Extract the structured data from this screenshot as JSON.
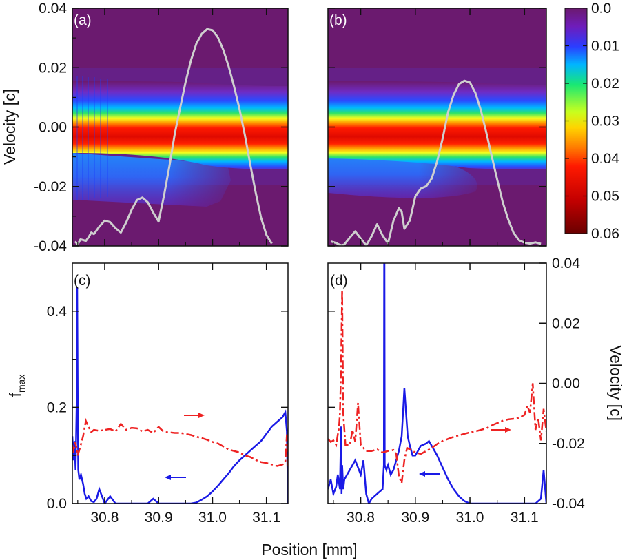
{
  "chart_data": [
    {
      "panel": "(a)",
      "type": "heatmap",
      "ylabel": "Velocity [c]",
      "ylim": [
        -0.04,
        0.04
      ],
      "xlim": [
        30.74,
        31.14
      ],
      "yticks": [
        "0.04",
        "0.02",
        "0.00",
        "-0.02",
        "-0.04"
      ],
      "overlay_curve": {
        "name": "density profile",
        "color": "#cfcfcf",
        "x": [
          30.745,
          30.75,
          30.755,
          30.76,
          30.765,
          30.77,
          30.775,
          30.78,
          30.79,
          30.8,
          30.81,
          30.82,
          30.83,
          30.84,
          30.85,
          30.86,
          30.87,
          30.88,
          30.89,
          30.9,
          30.91,
          30.92,
          30.93,
          30.94,
          30.95,
          30.96,
          30.97,
          30.98,
          30.99,
          31.0,
          31.01,
          31.02,
          31.03,
          31.04,
          31.05,
          31.06,
          31.07,
          31.08,
          31.09,
          31.1,
          31.11
        ],
        "y": [
          -0.0385,
          -0.0395,
          -0.0378,
          -0.038,
          -0.0383,
          -0.0371,
          -0.0355,
          -0.036,
          -0.0335,
          -0.0315,
          -0.032,
          -0.034,
          -0.0355,
          -0.032,
          -0.0278,
          -0.0245,
          -0.0237,
          -0.0253,
          -0.0288,
          -0.0318,
          -0.0231,
          -0.0131,
          -0.0022,
          0.0065,
          0.0151,
          0.0225,
          0.0281,
          0.0314,
          0.033,
          0.0326,
          0.0302,
          0.026,
          0.0204,
          0.0137,
          0.0061,
          -0.0027,
          -0.0125,
          -0.0219,
          -0.0305,
          -0.0363,
          -0.0392
        ]
      },
      "fill_bands": "central red band at 0.00 bounded by yellow/green/cyan edges near +/-0.012; blue region between -0.013 and -0.023 for positions below 31.0"
    },
    {
      "panel": "(b)",
      "type": "heatmap",
      "ylim": [
        -0.04,
        0.04
      ],
      "xlim": [
        30.74,
        31.14
      ],
      "overlay_curve": {
        "name": "density profile",
        "color": "#cfcfcf",
        "x": [
          30.745,
          30.75,
          30.755,
          30.76,
          30.765,
          30.77,
          30.78,
          30.79,
          30.8,
          30.81,
          30.82,
          30.83,
          30.84,
          30.85,
          30.86,
          30.87,
          30.875,
          30.88,
          30.89,
          30.9,
          30.91,
          30.92,
          30.93,
          30.94,
          30.95,
          30.96,
          30.97,
          30.98,
          30.99,
          31.0,
          31.01,
          31.02,
          31.03,
          31.04,
          31.05,
          31.06,
          31.07,
          31.08,
          31.09,
          31.1,
          31.11,
          31.12,
          31.13
        ],
        "y": [
          -0.0385,
          -0.0387,
          -0.039,
          -0.0395,
          -0.0398,
          -0.0395,
          -0.0372,
          -0.0351,
          -0.0375,
          -0.0398,
          -0.0367,
          -0.0327,
          -0.0365,
          -0.0391,
          -0.0315,
          -0.0273,
          -0.0285,
          -0.0342,
          -0.0314,
          -0.0233,
          -0.0207,
          -0.0199,
          -0.0173,
          -0.0115,
          -0.0039,
          0.0051,
          0.0108,
          0.0145,
          0.0156,
          0.015,
          0.0115,
          0.0057,
          -0.0018,
          -0.0098,
          -0.0177,
          -0.0252,
          -0.031,
          -0.0356,
          -0.0381,
          -0.0389,
          -0.0392,
          -0.0388,
          -0.0393
        ]
      },
      "fill_bands": "central red band at 0.00 bounded by yellow/green/cyan edges near +/-0.012; blue arch region between -0.012 and -0.024 for positions below 31.0"
    },
    {
      "panel": "(c)",
      "type": "line",
      "ylabel": "f",
      "ylabel_sub": "max",
      "ylim": [
        0.0,
        0.5
      ],
      "xlim": [
        30.74,
        31.14
      ],
      "yticks": [
        "0.4",
        "0.2",
        "0.0"
      ],
      "xticks": [
        30.8,
        30.9,
        31.0,
        31.1
      ],
      "xtick_labels": [
        "30.8",
        "30.9",
        "31.0",
        "31.1"
      ],
      "series": [
        {
          "name": "fmax",
          "axis": "left",
          "color": "#1a1ae6",
          "style": "solid",
          "x": [
            30.74,
            30.742,
            30.744,
            30.746,
            30.748,
            30.749,
            30.75,
            30.751,
            30.753,
            30.756,
            30.76,
            30.763,
            30.766,
            30.77,
            30.775,
            30.78,
            30.785,
            30.79,
            30.8,
            30.81,
            30.82,
            30.83,
            30.84,
            30.85,
            30.86,
            30.87,
            30.88,
            30.885,
            30.89,
            30.9,
            30.91,
            30.92,
            30.93,
            30.94,
            30.95,
            30.96,
            30.97,
            30.98,
            30.99,
            31.0,
            31.01,
            31.02,
            31.03,
            31.04,
            31.05,
            31.06,
            31.07,
            31.08,
            31.09,
            31.1,
            31.11,
            31.12,
            31.13,
            31.135,
            31.138,
            31.14
          ],
          "y": [
            0.14,
            0.09,
            0.13,
            0.07,
            0.21,
            0.45,
            0.21,
            0.07,
            0.05,
            0.06,
            0.04,
            0.02,
            0.01,
            0.015,
            0.005,
            0.003,
            0.01,
            0.03,
            0.0,
            0.015,
            0.0,
            0.0,
            0.0,
            0.0,
            0.0,
            0.0,
            0.0,
            0.005,
            0.01,
            0.0,
            0.0,
            0.0,
            0.0,
            0.0,
            0.0,
            0.0,
            0.002,
            0.008,
            0.015,
            0.025,
            0.037,
            0.05,
            0.063,
            0.078,
            0.09,
            0.1,
            0.11,
            0.12,
            0.13,
            0.145,
            0.16,
            0.17,
            0.18,
            0.19,
            0.15,
            0.0
          ]
        },
        {
          "name": "velocity",
          "axis": "right",
          "color": "#ee2222",
          "style": "dash-dot",
          "x": [
            30.74,
            30.742,
            30.745,
            30.748,
            30.75,
            30.755,
            30.76,
            30.765,
            30.77,
            30.775,
            30.78,
            30.79,
            30.8,
            30.81,
            30.82,
            30.83,
            30.84,
            30.85,
            30.86,
            30.87,
            30.88,
            30.89,
            30.9,
            30.91,
            30.92,
            30.93,
            30.94,
            30.95,
            30.96,
            30.97,
            30.98,
            30.99,
            31.0,
            31.01,
            31.02,
            31.03,
            31.04,
            31.05,
            31.06,
            31.07,
            31.08,
            31.09,
            31.1,
            31.11,
            31.12,
            31.13,
            31.135,
            31.138,
            31.14
          ],
          "y": [
            -0.0205,
            -0.023,
            -0.0195,
            -0.0215,
            -0.024,
            -0.021,
            -0.0175,
            -0.0125,
            -0.0145,
            -0.0162,
            -0.0155,
            -0.0158,
            -0.0155,
            -0.0152,
            -0.016,
            -0.0135,
            -0.0155,
            -0.0148,
            -0.015,
            -0.016,
            -0.0155,
            -0.0165,
            -0.0145,
            -0.0162,
            -0.0163,
            -0.0165,
            -0.0165,
            -0.0168,
            -0.0172,
            -0.0178,
            -0.0182,
            -0.0188,
            -0.0195,
            -0.02,
            -0.021,
            -0.022,
            -0.0225,
            -0.023,
            -0.024,
            -0.0245,
            -0.0255,
            -0.0262,
            -0.0265,
            -0.027,
            -0.0275,
            -0.027,
            -0.026,
            -0.017,
            -0.0275
          ]
        }
      ]
    },
    {
      "panel": "(d)",
      "type": "line",
      "ylim": [
        0.0,
        0.5
      ],
      "xlim": [
        30.74,
        31.14
      ],
      "right_ylabel": "Velocity [c]",
      "right_ylim": [
        -0.04,
        0.04
      ],
      "right_yticks": [
        "0.04",
        "0.02",
        "0.00",
        "-0.02",
        "-0.04"
      ],
      "xticks": [
        30.8,
        30.9,
        31.0,
        31.1
      ],
      "xtick_labels": [
        "30.8",
        "30.9",
        "31.0",
        "31.1"
      ],
      "xlabel": "Position [mm]",
      "series": [
        {
          "name": "fmax",
          "axis": "left",
          "color": "#1a1ae6",
          "style": "solid",
          "x": [
            30.74,
            30.745,
            30.75,
            30.755,
            30.758,
            30.762,
            30.764,
            30.765,
            30.766,
            30.768,
            30.77,
            30.78,
            30.79,
            30.8,
            30.805,
            30.81,
            30.815,
            30.82,
            30.83,
            30.84,
            30.8425,
            30.843,
            30.8435,
            30.844,
            30.847,
            30.85,
            30.855,
            30.86,
            30.865,
            30.87,
            30.875,
            30.878,
            30.88,
            30.883,
            30.886,
            30.89,
            30.895,
            30.9,
            30.905,
            30.91,
            30.92,
            30.925,
            30.93,
            30.94,
            30.95,
            30.96,
            30.97,
            30.98,
            30.99,
            31.0,
            31.02,
            31.05,
            31.08,
            31.1,
            31.12,
            31.13,
            31.135,
            31.14
          ],
          "y": [
            0.03,
            0.05,
            0.02,
            0.035,
            0.06,
            0.03,
            0.16,
            0.02,
            0.08,
            0.03,
            0.05,
            0.07,
            0.09,
            0.06,
            0.09,
            0.02,
            0.0,
            0.01,
            0.02,
            0.03,
            0.08,
            0.5,
            0.5,
            0.08,
            0.07,
            0.08,
            0.06,
            0.07,
            0.09,
            0.11,
            0.14,
            0.2,
            0.24,
            0.19,
            0.14,
            0.12,
            0.1,
            0.1,
            0.11,
            0.12,
            0.125,
            0.13,
            0.12,
            0.1,
            0.075,
            0.05,
            0.03,
            0.015,
            0.005,
            0.0,
            0.0,
            0.0,
            0.0,
            0.0,
            0.0,
            0.01,
            0.07,
            0.0
          ]
        },
        {
          "name": "velocity",
          "axis": "right",
          "color": "#ee2222",
          "style": "dash-dot",
          "x": [
            30.74,
            30.745,
            30.75,
            30.755,
            30.758,
            30.76,
            30.762,
            30.764,
            30.766,
            30.768,
            30.772,
            30.78,
            30.785,
            30.79,
            30.795,
            30.8,
            30.805,
            30.81,
            30.82,
            30.83,
            30.84,
            30.85,
            30.86,
            30.865,
            30.87,
            30.875,
            30.88,
            30.885,
            30.89,
            30.9,
            30.91,
            30.92,
            30.93,
            30.94,
            30.95,
            30.96,
            30.97,
            30.98,
            30.99,
            31.0,
            31.01,
            31.02,
            31.03,
            31.04,
            31.05,
            31.06,
            31.07,
            31.08,
            31.09,
            31.1,
            31.105,
            31.11,
            31.115,
            31.12,
            31.125,
            31.13,
            31.135,
            31.14
          ],
          "y": [
            -0.0185,
            -0.0195,
            -0.019,
            -0.0205,
            -0.017,
            -0.015,
            -0.01,
            0.005,
            0.031,
            -0.01,
            -0.0205,
            -0.0205,
            -0.0155,
            -0.0195,
            -0.0065,
            -0.0205,
            -0.0215,
            -0.0225,
            -0.0225,
            -0.022,
            -0.023,
            -0.0225,
            -0.0222,
            -0.0235,
            -0.031,
            -0.0332,
            -0.0255,
            -0.0215,
            -0.022,
            -0.023,
            -0.0235,
            -0.0225,
            -0.0215,
            -0.0202,
            -0.0192,
            -0.0185,
            -0.0178,
            -0.0173,
            -0.0168,
            -0.0163,
            -0.016,
            -0.0155,
            -0.015,
            -0.014,
            -0.0132,
            -0.0125,
            -0.012,
            -0.0118,
            -0.0115,
            -0.0105,
            -0.0075,
            -0.0098,
            0.0,
            -0.0155,
            -0.0115,
            -0.019,
            -0.0085,
            -0.016
          ]
        }
      ]
    }
  ],
  "colorbar": {
    "ticks": [
      "0.0",
      "0.01",
      "0.02",
      "0.03",
      "0.04",
      "0.05",
      "0.06"
    ],
    "range": [
      0.0,
      0.06
    ],
    "stops": [
      "#6b1a6f",
      "#6f1cba",
      "#2b3dff",
      "#00b5ff",
      "#19e873",
      "#c8ff1e",
      "#ffd400",
      "#ff7a00",
      "#ff1a00",
      "#c40000",
      "#6a0000"
    ]
  },
  "labels": {
    "panel_a": "(a)",
    "panel_b": "(b)",
    "panel_c": "(c)",
    "panel_d": "(d)",
    "ylabel_top": "Velocity [c]",
    "ylabel_bottom": "f",
    "ylabel_bottom_sub": "max",
    "ylabel_right": "Velocity [c]",
    "xlabel": "Position [mm]"
  },
  "colors": {
    "background_purple": "#6b1a6f",
    "curve_white": "#cfcfcf",
    "blue_series": "#1a1ae6",
    "red_series": "#ee2222",
    "arrow_red": "#ee2222",
    "arrow_blue": "#1a1ae6"
  }
}
